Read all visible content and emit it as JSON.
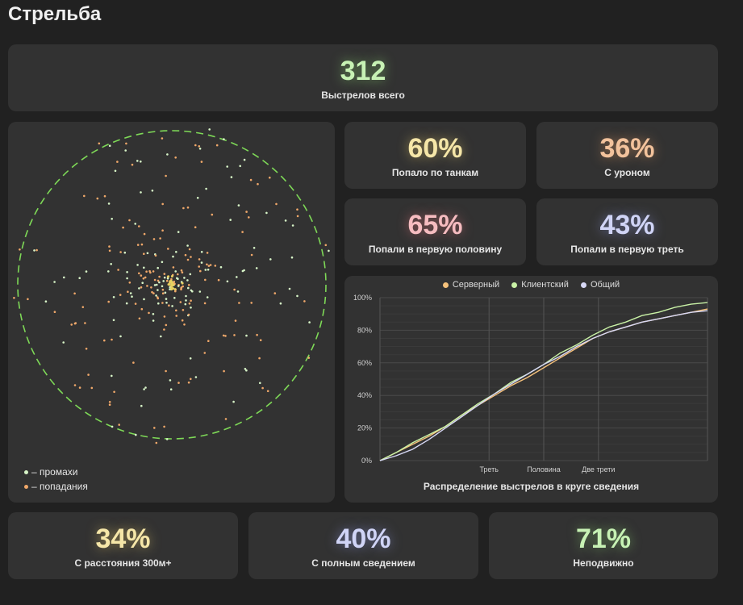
{
  "page": {
    "title": "Стрельба"
  },
  "colors": {
    "green": "#c7f2b4",
    "yellow": "#f5e6a8",
    "orange": "#f2c29c",
    "red": "#f6bcc0",
    "blue": "#d0d4f6",
    "miss": "#d8f5c8",
    "hit": "#f0a86a",
    "circle": "#7ed957",
    "server": "#f6c27c",
    "client": "#c9f2a6",
    "total": "#d7d8f5"
  },
  "total": {
    "value": "312",
    "label": "Выстрелов всего"
  },
  "stats": {
    "tanks": {
      "value": "60%",
      "label": "Попало по танкам"
    },
    "damage": {
      "value": "36%",
      "label": "С уроном"
    },
    "first_half": {
      "value": "65%",
      "label": "Попали в первую половину"
    },
    "first_third": {
      "value": "43%",
      "label": "Попали в первую треть"
    },
    "distance": {
      "value": "34%",
      "label": "С расстояния 300м+"
    },
    "full_aim": {
      "value": "40%",
      "label": "С полным сведением"
    },
    "stationary": {
      "value": "71%",
      "label": "Неподвижно"
    }
  },
  "scatter_legend": {
    "miss": "– промахи",
    "hit": "– попадания"
  },
  "chart_data": {
    "type": "line",
    "title": "Распределение выстрелов в круге сведения",
    "x_ticks": [
      "Треть",
      "Половина",
      "Две трети"
    ],
    "x_tick_positions": [
      0.333,
      0.5,
      0.667
    ],
    "y_ticks": [
      "0%",
      "20%",
      "40%",
      "60%",
      "80%",
      "100%"
    ],
    "ylim": [
      0,
      100
    ],
    "xlim": [
      0,
      1
    ],
    "legend_position": "top-center",
    "x": [
      0,
      0.05,
      0.1,
      0.15,
      0.2,
      0.25,
      0.3,
      0.35,
      0.4,
      0.45,
      0.5,
      0.55,
      0.6,
      0.65,
      0.7,
      0.75,
      0.8,
      0.85,
      0.9,
      0.95,
      1.0
    ],
    "series": [
      {
        "name": "Серверный",
        "values": [
          0,
          5,
          10,
          15,
          21,
          28,
          34,
          40,
          46,
          51,
          57,
          63,
          69,
          75,
          79,
          82,
          85,
          87,
          89,
          91,
          93
        ]
      },
      {
        "name": "Клиентский",
        "values": [
          0,
          5,
          11,
          16,
          21,
          28,
          35,
          41,
          48,
          53,
          59,
          66,
          71,
          77,
          82,
          85,
          89,
          91,
          94,
          96,
          97
        ]
      },
      {
        "name": "Общий",
        "values": [
          0,
          3,
          7,
          13,
          20,
          27,
          34,
          41,
          47,
          53,
          59,
          64,
          70,
          75,
          79,
          82,
          85,
          87,
          89,
          91,
          92
        ]
      }
    ]
  }
}
